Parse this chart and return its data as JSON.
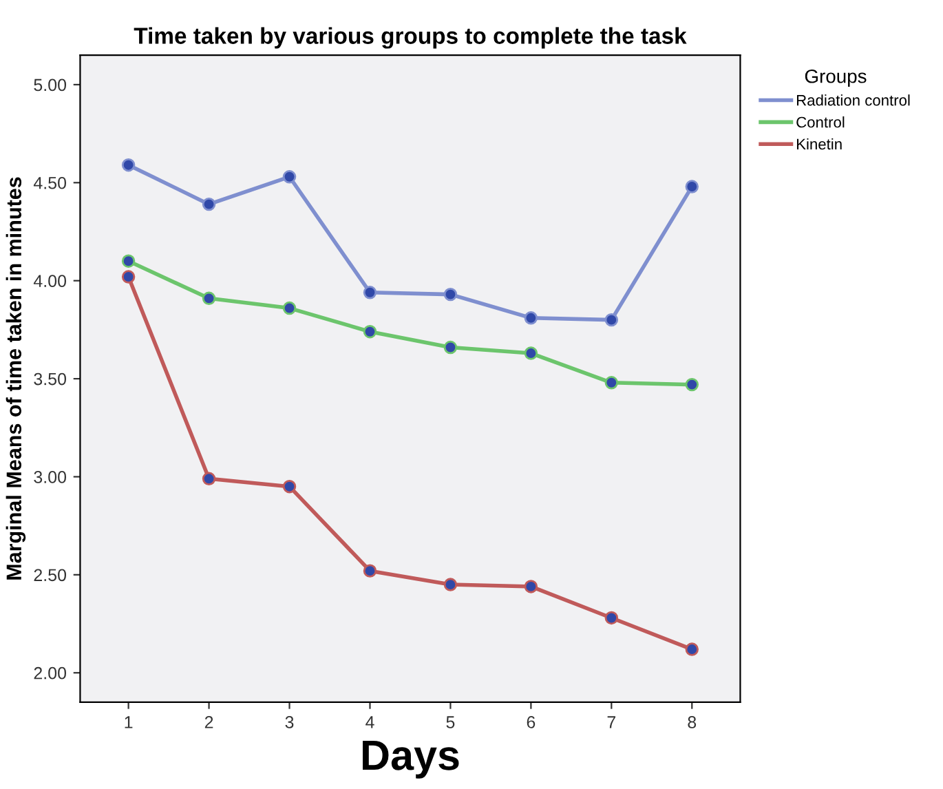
{
  "chart_data": {
    "type": "line",
    "title": "Time taken by various groups to complete the task",
    "xlabel": "Days",
    "ylabel": "Marginal Means of time taken in minutes",
    "legend_title": "Groups",
    "legend": "right",
    "marker": "circle",
    "grid": false,
    "categories": [
      "1",
      "2",
      "3",
      "4",
      "5",
      "6",
      "7",
      "8"
    ],
    "ylim": [
      1.85,
      5.15
    ],
    "yticks": [
      {
        "value": 2,
        "label": "2.00"
      },
      {
        "value": 2.5,
        "label": "2.50"
      },
      {
        "value": 3,
        "label": "3.00"
      },
      {
        "value": 3.5,
        "label": "3.50"
      },
      {
        "value": 4,
        "label": "4.00"
      },
      {
        "value": 4.5,
        "label": "4.50"
      },
      {
        "value": 5,
        "label": "5.00"
      }
    ],
    "series": [
      {
        "name": "Radiation control",
        "color": "#7f8fcf",
        "values": [
          4.59,
          4.39,
          4.53,
          3.94,
          3.93,
          3.81,
          3.8,
          4.48
        ]
      },
      {
        "name": "Control",
        "color": "#6cc56c",
        "values": [
          4.1,
          3.91,
          3.86,
          3.74,
          3.66,
          3.63,
          3.48,
          3.47
        ]
      },
      {
        "name": "Kinetin",
        "color": "#c05a5a",
        "values": [
          4.02,
          2.99,
          2.95,
          2.52,
          2.45,
          2.44,
          2.28,
          2.12
        ]
      }
    ]
  }
}
